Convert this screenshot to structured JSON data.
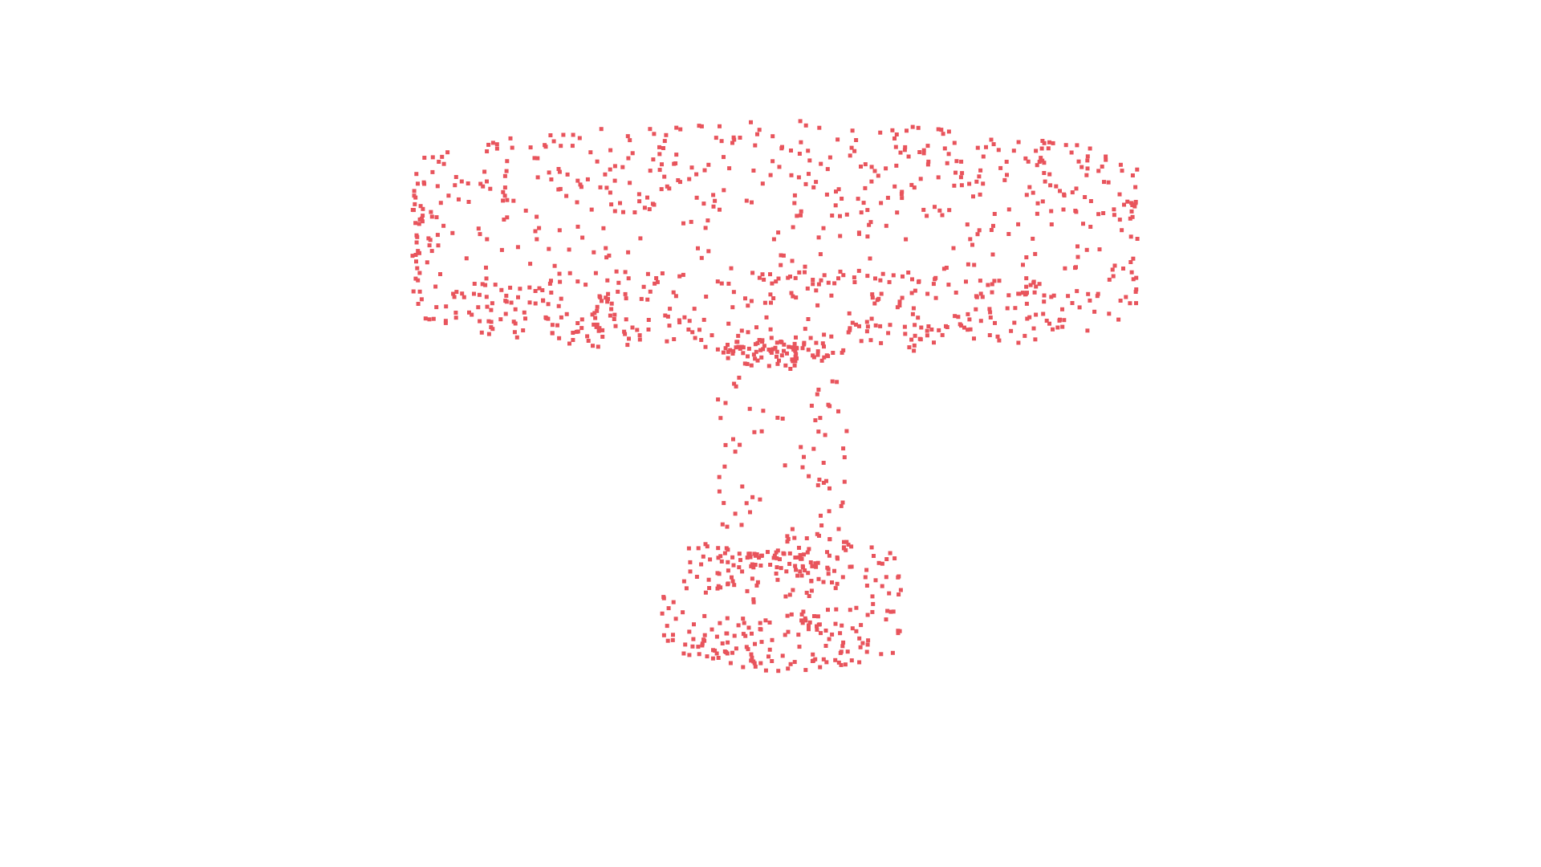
{
  "scene": {
    "background_color": "#ffffff",
    "point_color": "#e8545c",
    "object": "table",
    "description_visible_text": "",
    "parts": [
      {
        "name": "tabletop",
        "shape": "cylinder",
        "point_count": 900
      },
      {
        "name": "pedestal",
        "shape": "cylinder",
        "point_count": 190
      },
      {
        "name": "base",
        "shape": "cylinder",
        "point_count": 260
      }
    ]
  }
}
